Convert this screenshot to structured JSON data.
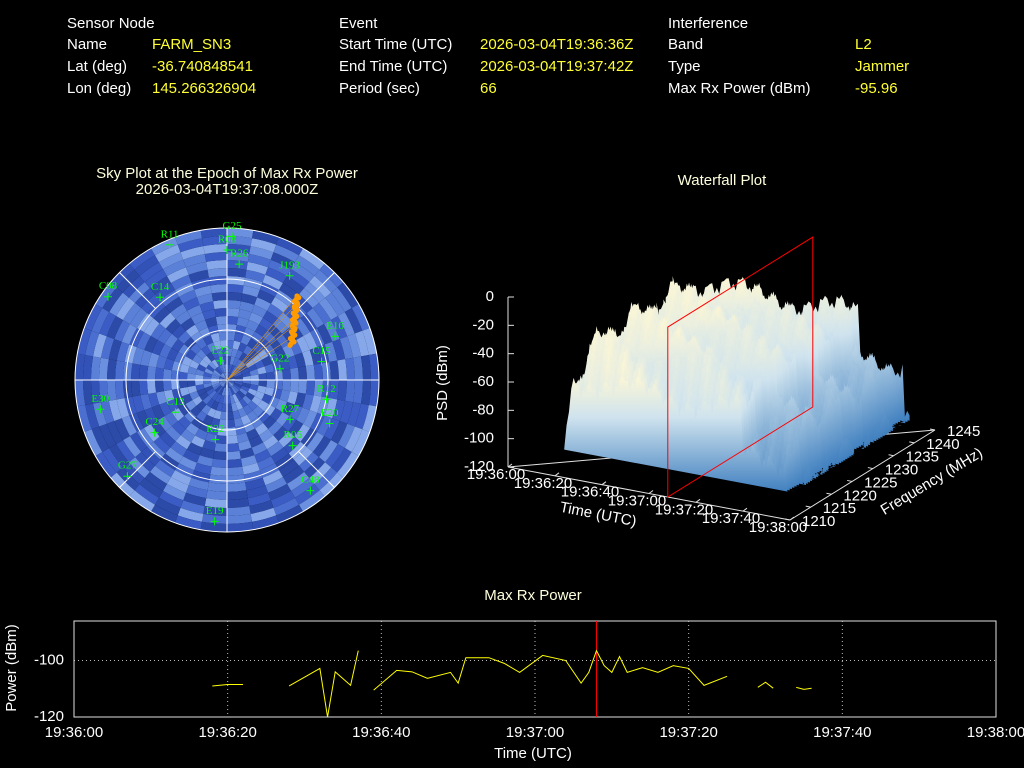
{
  "header": {
    "sensor_node": {
      "title": "Sensor Node",
      "rows": [
        [
          "Name",
          "FARM_SN3"
        ],
        [
          "Lat (deg)",
          -36.740848541
        ],
        [
          "Lon (deg)",
          145.266326904
        ]
      ]
    },
    "event": {
      "title": "Event",
      "rows": [
        [
          "Start Time (UTC)",
          "2026-03-04T19:36:36Z"
        ],
        [
          "End Time (UTC)",
          "2026-03-04T19:37:42Z"
        ],
        [
          "Period (sec)",
          66
        ]
      ]
    },
    "interference": {
      "title": "Interference",
      "rows": [
        [
          "Band",
          "L2"
        ],
        [
          "Type",
          "Jammer"
        ],
        [
          "Max Rx Power (dBm)",
          -95.96
        ]
      ]
    }
  },
  "chart_data": [
    {
      "type": "polar",
      "title": "Sky Plot at the Epoch of Max Rx Power",
      "subtitle": "2026-03-04T19:37:08.000Z",
      "color": "#00ff00",
      "points": [
        {
          "name": "G25",
          "azimuth": 2,
          "elevation": 5
        },
        {
          "name": "R11",
          "azimuth": 337,
          "elevation": 3
        },
        {
          "name": "R08",
          "azimuth": 0,
          "elevation": 13
        },
        {
          "name": "R26",
          "azimuth": 6,
          "elevation": 21
        },
        {
          "name": "J193",
          "azimuth": 31,
          "elevation": 18
        },
        {
          "name": "E16",
          "azimuth": 68,
          "elevation": 21
        },
        {
          "name": "C15",
          "azimuth": 79,
          "elevation": 33
        },
        {
          "name": "R12",
          "azimuth": 101,
          "elevation": 30
        },
        {
          "name": "E20",
          "azimuth": 113,
          "elevation": 24
        },
        {
          "name": "R27",
          "azimuth": 122,
          "elevation": 46
        },
        {
          "name": "R06",
          "azimuth": 135,
          "elevation": 35
        },
        {
          "name": "C48",
          "azimuth": 143,
          "elevation": 8
        },
        {
          "name": "E19",
          "azimuth": 185,
          "elevation": 6
        },
        {
          "name": "G27",
          "azimuth": 226,
          "elevation": 8
        },
        {
          "name": "E30",
          "azimuth": 257,
          "elevation": 13
        },
        {
          "name": "C08",
          "azimuth": 305,
          "elevation": 4
        },
        {
          "name": "C14",
          "azimuth": 321,
          "elevation": 27
        },
        {
          "name": "E22",
          "azimuth": 341,
          "elevation": 78
        },
        {
          "name": "G22",
          "azimuth": 78,
          "elevation": 58
        },
        {
          "name": "C13",
          "azimuth": 238,
          "elevation": 54
        },
        {
          "name": "C24",
          "azimuth": 234,
          "elevation": 37
        },
        {
          "name": "R22",
          "azimuth": 191,
          "elevation": 54
        }
      ]
    },
    {
      "type": "surface",
      "title": "Waterfall Plot",
      "xlabel": "Time (UTC)",
      "ylabel": "Frequency (MHz)",
      "zlabel": "PSD (dBm)",
      "xlim": [
        "19:36:00",
        "19:38:00"
      ],
      "xticks": [
        "19:36:00",
        "19:36:20",
        "19:36:40",
        "19:37:00",
        "19:37:20",
        "19:37:40",
        "19:38:00"
      ],
      "ylim": [
        1210,
        1245
      ],
      "yticks": [
        1210,
        1215,
        1220,
        1225,
        1230,
        1235,
        1240,
        1245
      ],
      "zlim": [
        -120,
        0
      ],
      "zticks": [
        0,
        -20,
        -40,
        -60,
        -80,
        -100,
        -120
      ],
      "marker_x": "19:37:08",
      "marker_color": "#ff0000"
    },
    {
      "type": "line",
      "title": "Max Rx Power",
      "xlabel": "Time (UTC)",
      "ylabel": "Power (dBm)",
      "color": "#ffff00",
      "x": [
        "19:36:18",
        "19:36:20",
        "19:36:22",
        "19:36:25",
        "19:36:28",
        "19:36:32",
        "19:36:33",
        "19:36:34",
        "19:36:36",
        "19:36:37",
        "19:36:38",
        "19:36:39",
        "19:36:42",
        "19:36:44",
        "19:36:46",
        "19:36:49",
        "19:36:50",
        "19:36:51",
        "19:36:54",
        "19:36:56",
        "19:36:58",
        "19:37:01",
        "19:37:04",
        "19:37:06",
        "19:37:07",
        "19:37:08",
        "19:37:09",
        "19:37:10",
        "19:37:11",
        "19:37:12",
        "19:37:14",
        "19:37:16",
        "19:37:18",
        "19:37:20",
        "19:37:22",
        "19:37:25",
        "19:37:27",
        "19:37:29",
        "19:37:30",
        "19:37:31",
        "19:37:32",
        "19:37:34",
        "19:37:35",
        "19:37:36"
      ],
      "values": [
        -109,
        -108.5,
        -108.5,
        null,
        -109,
        -102.8,
        -120,
        -104,
        -108.8,
        -96.5,
        null,
        -110.5,
        -103.5,
        -104,
        -106.3,
        -104.2,
        -108,
        -99,
        -99,
        -101,
        -104.2,
        -98.2,
        -100,
        -108,
        -104.2,
        -96.5,
        -101.8,
        -104.2,
        -98.6,
        -104.2,
        -102.5,
        -104.2,
        -101.8,
        -102.8,
        -108.8,
        -105.6,
        null,
        -109.5,
        -107.7,
        -109.8,
        null,
        -109.5,
        -110.2,
        -109.8
      ],
      "xlim": [
        "19:36:00",
        "19:38:00"
      ],
      "xticks": [
        "19:36:00",
        "19:36:20",
        "19:36:40",
        "19:37:00",
        "19:37:20",
        "19:37:40",
        "19:38:00"
      ],
      "ylim": [
        -120,
        -86
      ],
      "yticks": [
        -120,
        -100
      ],
      "grid": true,
      "marker_x": "19:37:08",
      "marker_color": "#ff0000"
    }
  ]
}
